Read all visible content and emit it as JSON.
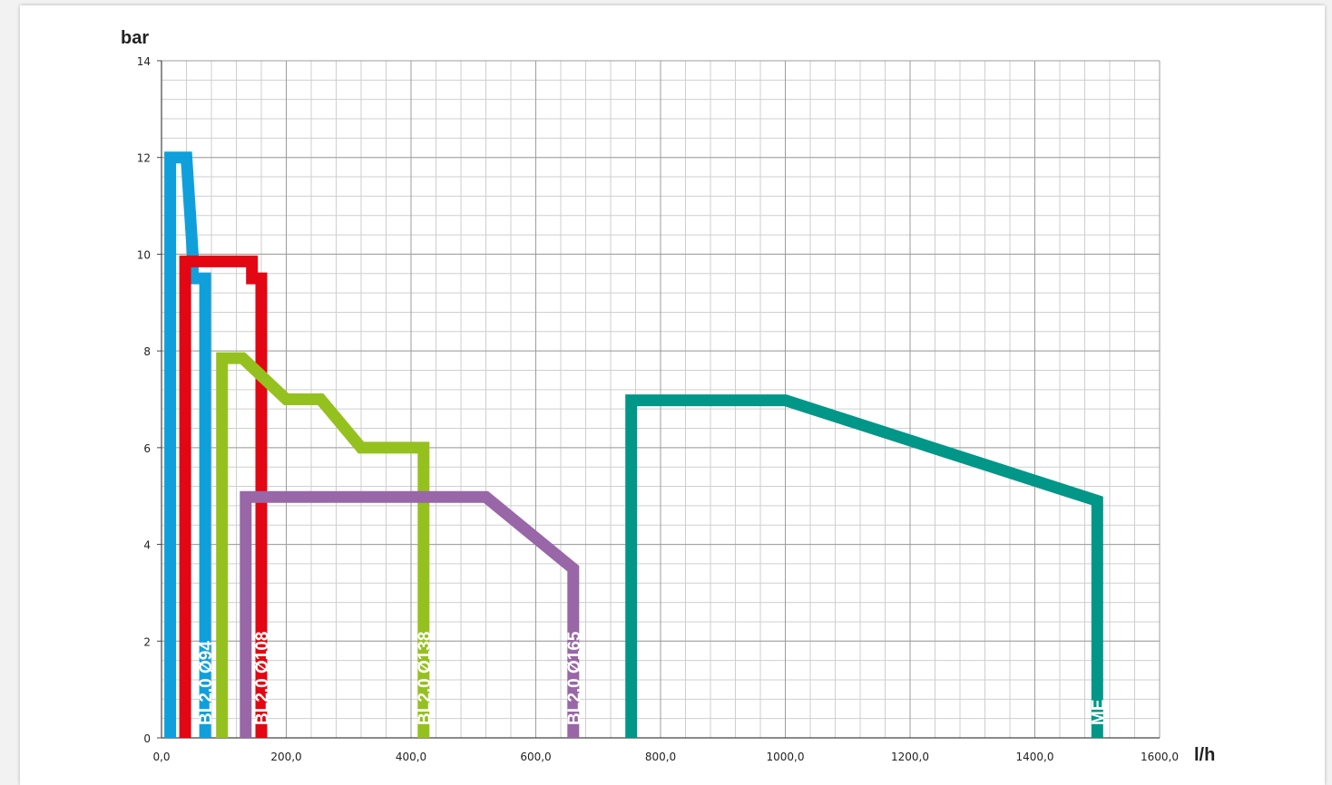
{
  "chart_data": {
    "type": "line",
    "xlabel": "l/h",
    "ylabel": "bar",
    "xlim": [
      0,
      1600
    ],
    "ylim": [
      0,
      14
    ],
    "x_ticks": [
      0,
      200,
      400,
      600,
      800,
      1000,
      1200,
      1400,
      1600
    ],
    "x_tick_labels": [
      "0,0",
      "200,0",
      "400,0",
      "600,0",
      "800,0",
      "1000,0",
      "1200,0",
      "1400,0",
      "1600,0"
    ],
    "y_ticks": [
      0,
      2,
      4,
      6,
      8,
      10,
      12,
      14
    ],
    "y_tick_labels": [
      "0",
      "2",
      "4",
      "6",
      "8",
      "10",
      "12",
      "14"
    ],
    "grid": true,
    "series": [
      {
        "name": "BL2.0 Ø94",
        "color": "#0fa0dc",
        "points": [
          [
            14,
            0
          ],
          [
            14,
            12
          ],
          [
            40,
            12
          ],
          [
            50,
            10
          ],
          [
            50,
            9.5
          ],
          [
            70,
            9.5
          ],
          [
            70,
            0
          ]
        ]
      },
      {
        "name": "BL2.0 Ø108",
        "color": "#e30613",
        "points": [
          [
            38,
            0
          ],
          [
            38,
            9.85
          ],
          [
            145,
            9.85
          ],
          [
            145,
            9.5
          ],
          [
            160,
            9.5
          ],
          [
            160,
            0
          ]
        ]
      },
      {
        "name": "BL2.0 Ø138",
        "color": "#95c11f",
        "points": [
          [
            97,
            0
          ],
          [
            97,
            7.85
          ],
          [
            130,
            7.85
          ],
          [
            200,
            7.0
          ],
          [
            255,
            7.0
          ],
          [
            320,
            6.0
          ],
          [
            420,
            6.0
          ],
          [
            420,
            0
          ]
        ]
      },
      {
        "name": "BL2.0 Ø165",
        "color": "#9966a8",
        "points": [
          [
            135,
            0
          ],
          [
            135,
            4.98
          ],
          [
            520,
            4.98
          ],
          [
            660,
            3.5
          ],
          [
            660,
            0
          ]
        ]
      },
      {
        "name": "ME",
        "color": "#009688",
        "points": [
          [
            753,
            0
          ],
          [
            753,
            6.98
          ],
          [
            1000,
            6.98
          ],
          [
            1500,
            4.9
          ],
          [
            1500,
            0
          ]
        ]
      }
    ]
  }
}
